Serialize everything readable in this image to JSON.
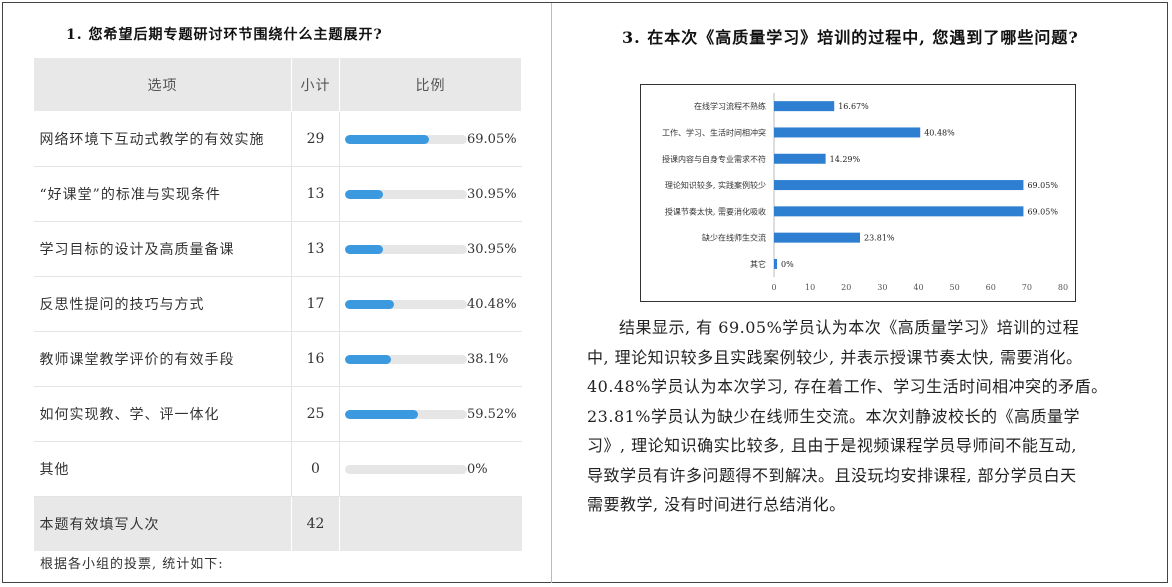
{
  "q1": {
    "title": "1. 您希望后期专题研讨环节围绕什么主题展开?",
    "headers": {
      "option": "选项",
      "count": "小计",
      "ratio": "比例"
    },
    "rows": [
      {
        "option": "网络环境下互动式教学的有效实施",
        "count": "29",
        "percent": 69.05,
        "percent_label": "69.05%"
      },
      {
        "option": "“好课堂”的标准与实现条件",
        "count": "13",
        "percent": 30.95,
        "percent_label": "30.95%"
      },
      {
        "option": "学习目标的设计及高质量备课",
        "count": "13",
        "percent": 30.95,
        "percent_label": "30.95%"
      },
      {
        "option": "反思性提问的技巧与方式",
        "count": "17",
        "percent": 40.48,
        "percent_label": "40.48%"
      },
      {
        "option": "教师课堂教学评价的有效手段",
        "count": "16",
        "percent": 38.1,
        "percent_label": "38.1%"
      },
      {
        "option": "如何实现教、学、评一体化",
        "count": "25",
        "percent": 59.52,
        "percent_label": "59.52%"
      },
      {
        "option": "其他",
        "count": "0",
        "percent": 0,
        "percent_label": "0%"
      }
    ],
    "summary": {
      "label": "本题有效填写人次",
      "count": "42"
    },
    "note": "根据各小组的投票, 统计如下:"
  },
  "q3": {
    "title": "3. 在本次《高质量学习》培训的过程中, 您遇到了哪些问题?",
    "paragraph_lines": [
      "结果显示, 有 69.05%学员认为本次《高质量学习》培训的过程",
      "中, 理论知识较多且实践案例较少, 并表示授课节奏太快, 需要消化。",
      "40.48%学员认为本次学习, 存在着工作、学习生活时间相冲突的矛盾。",
      "23.81%学员认为缺少在线师生交流。本次刘静波校长的《高质量学",
      "习》, 理论知识确实比较多, 且由于是视频课程学员导师间不能互动,",
      "导致学员有许多问题得不到解决。且没玩均安排课程, 部分学员白天",
      "需要教学, 没有时间进行总结消化。"
    ]
  },
  "chart_data": {
    "type": "bar",
    "orientation": "horizontal",
    "categories": [
      "在线学习流程不熟练",
      "工作、学习、生活时间相冲突",
      "授课内容与自身专业需求不符",
      "理论知识较多, 实践案例较少",
      "授课节奏太快, 需要消化吸收",
      "缺少在线师生交流",
      "其它"
    ],
    "values": [
      16.67,
      40.48,
      14.29,
      69.05,
      69.05,
      23.81,
      0
    ],
    "value_labels": [
      "16.67%",
      "40.48%",
      "14.29%",
      "69.05%",
      "69.05%",
      "23.81%",
      "0%"
    ],
    "xlim": [
      0,
      80
    ],
    "xticks": [
      "0",
      "10",
      "20",
      "30",
      "40",
      "50",
      "60",
      "70",
      "80"
    ],
    "bar_color": "#2e7fd1",
    "grid": false
  },
  "colors": {
    "bar_fill": "#3b99e0",
    "bar_track": "#e6e6e6",
    "header_bg": "#e8e8e8"
  }
}
